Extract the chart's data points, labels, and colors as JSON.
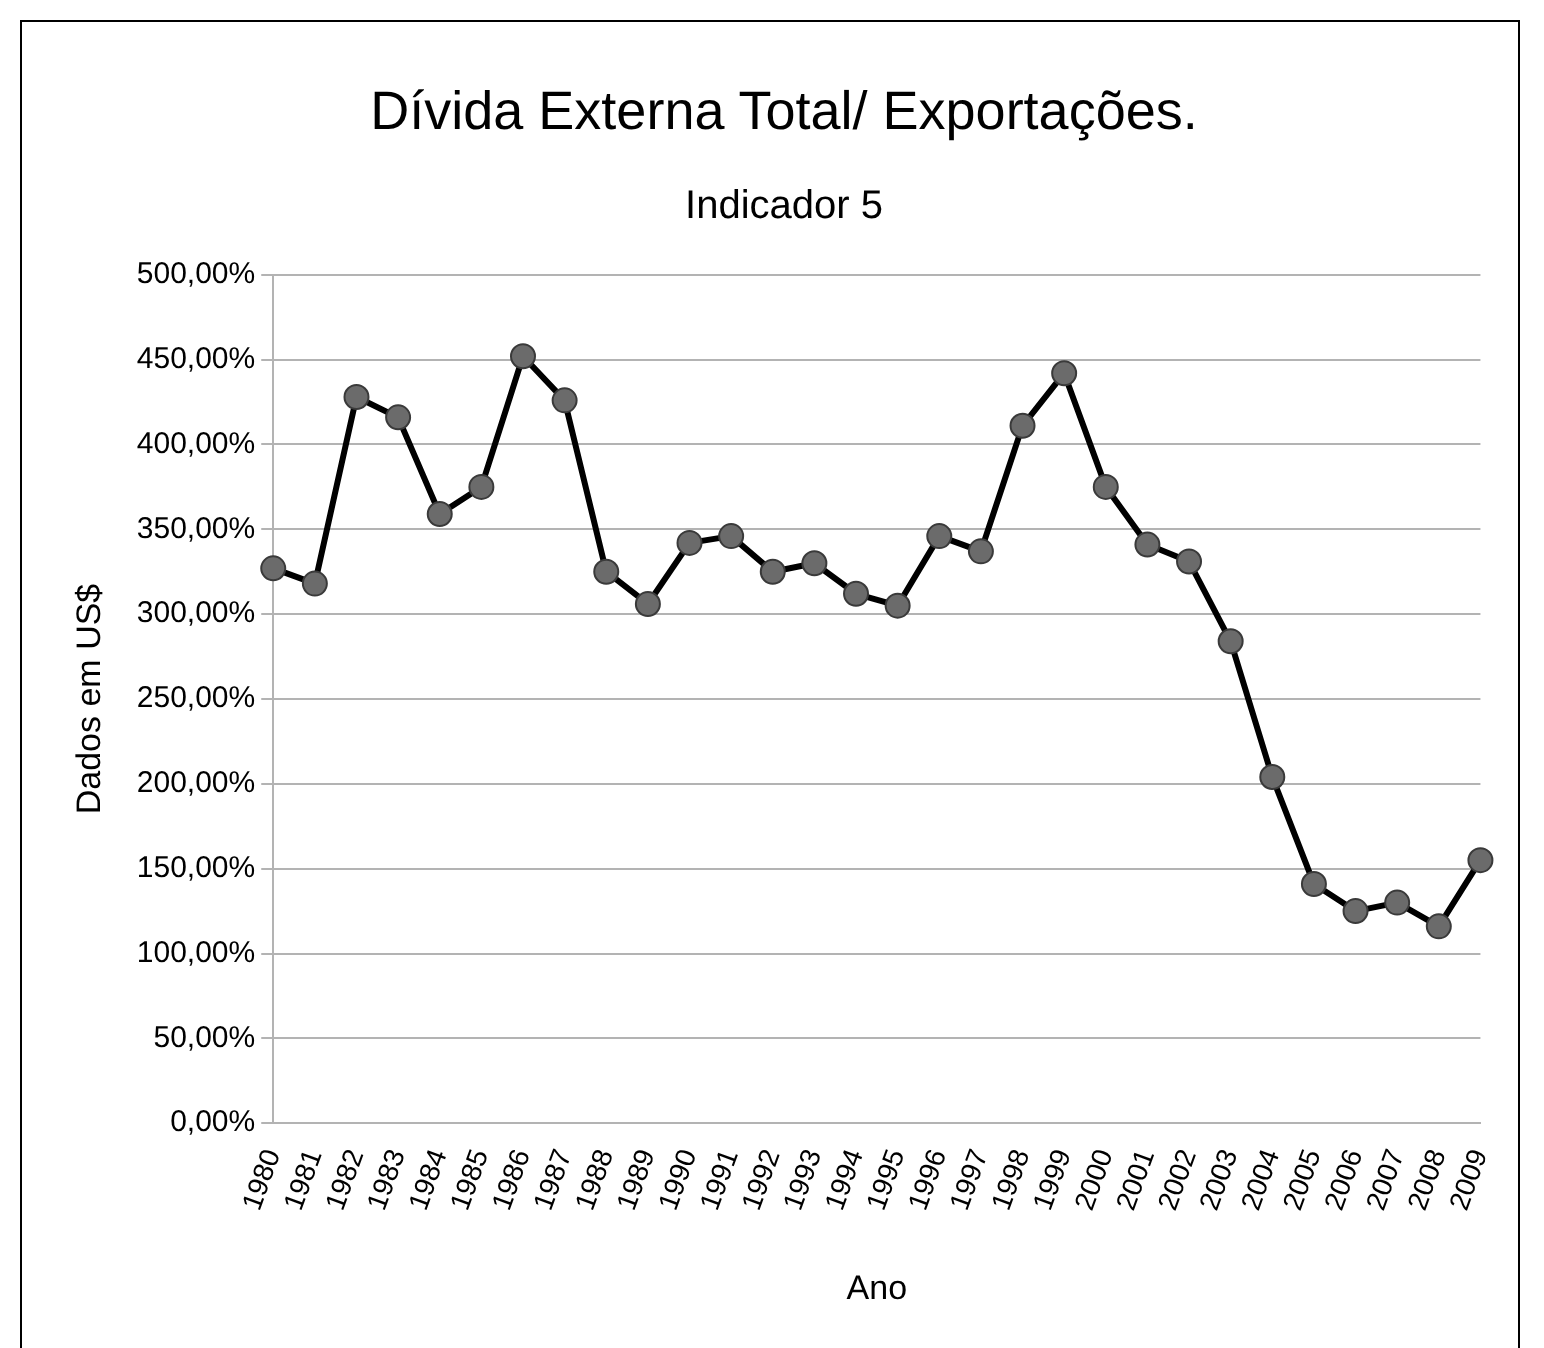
{
  "chart_data": {
    "type": "line",
    "title": "Dívida Externa Total/ Exportações.",
    "subtitle": "Indicador 5",
    "xlabel": "Ano",
    "ylabel": "Dados em US$",
    "categories": [
      "1980",
      "1981",
      "1982",
      "1983",
      "1984",
      "1985",
      "1986",
      "1987",
      "1988",
      "1989",
      "1990",
      "1991",
      "1992",
      "1993",
      "1994",
      "1995",
      "1996",
      "1997",
      "1998",
      "1999",
      "2000",
      "2001",
      "2002",
      "2003",
      "2004",
      "2005",
      "2006",
      "2007",
      "2008",
      "2009"
    ],
    "series": [
      {
        "color": "#000000",
        "values": [
          327,
          318,
          428,
          416,
          359,
          375,
          452,
          426,
          325,
          306,
          342,
          346,
          325,
          330,
          312,
          305,
          346,
          337,
          411,
          442,
          375,
          341,
          331,
          284,
          204,
          141,
          125,
          130,
          116,
          155
        ]
      }
    ],
    "ylim": [
      0,
      500
    ],
    "yticks": [
      {
        "value": 0,
        "label": "0,00%"
      },
      {
        "value": 50,
        "label": "50,00%"
      },
      {
        "value": 100,
        "label": "100,00%"
      },
      {
        "value": 150,
        "label": "150,00%"
      },
      {
        "value": 200,
        "label": "200,00%"
      },
      {
        "value": 250,
        "label": "250,00%"
      },
      {
        "value": 300,
        "label": "300,00%"
      },
      {
        "value": 350,
        "label": "350,00%"
      },
      {
        "value": 400,
        "label": "400,00%"
      },
      {
        "value": 450,
        "label": "450,00%"
      },
      {
        "value": 500,
        "label": "500,00%"
      }
    ],
    "grid": "y",
    "marker": "circle",
    "line_style": "solid",
    "legend": false
  }
}
